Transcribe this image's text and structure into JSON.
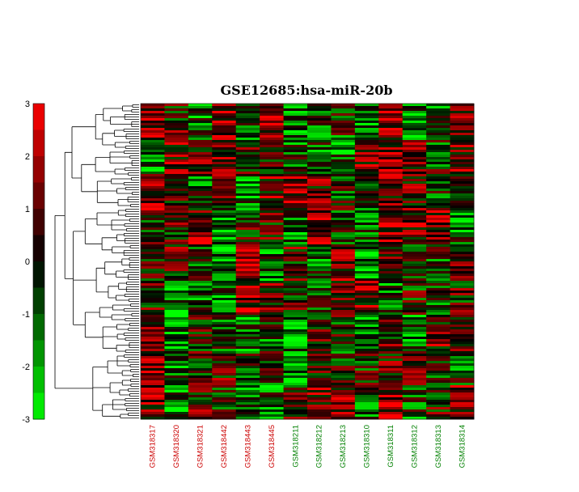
{
  "chart_data": {
    "type": "heatmap",
    "title": "GSE12685:hsa-miR-20b",
    "color_scale": {
      "min": -3,
      "max": 3,
      "ticks": [
        3,
        2,
        1,
        0,
        -1,
        -2,
        -3
      ],
      "tick_labels": [
        "3",
        "2",
        "1",
        "0",
        "-1",
        "-2",
        "-3"
      ],
      "low_color": "#00ff00",
      "mid_color": "#000000",
      "high_color": "#ff0000"
    },
    "samples": [
      {
        "id": "GSM318317",
        "group_color": "#cc0000"
      },
      {
        "id": "GSM318320",
        "group_color": "#cc0000"
      },
      {
        "id": "GSM318321",
        "group_color": "#cc0000"
      },
      {
        "id": "GSM318442",
        "group_color": "#cc0000"
      },
      {
        "id": "GSM318443",
        "group_color": "#cc0000"
      },
      {
        "id": "GSM318445",
        "group_color": "#cc0000"
      },
      {
        "id": "GSM318211",
        "group_color": "#008000"
      },
      {
        "id": "GSM318212",
        "group_color": "#008000"
      },
      {
        "id": "GSM318213",
        "group_color": "#008000"
      },
      {
        "id": "GSM318310",
        "group_color": "#008000"
      },
      {
        "id": "GSM318311",
        "group_color": "#008000"
      },
      {
        "id": "GSM318312",
        "group_color": "#008000"
      },
      {
        "id": "GSM318313",
        "group_color": "#008000"
      },
      {
        "id": "GSM318314",
        "group_color": "#008000"
      }
    ],
    "row_count": 130,
    "row_dendrogram": true
  }
}
